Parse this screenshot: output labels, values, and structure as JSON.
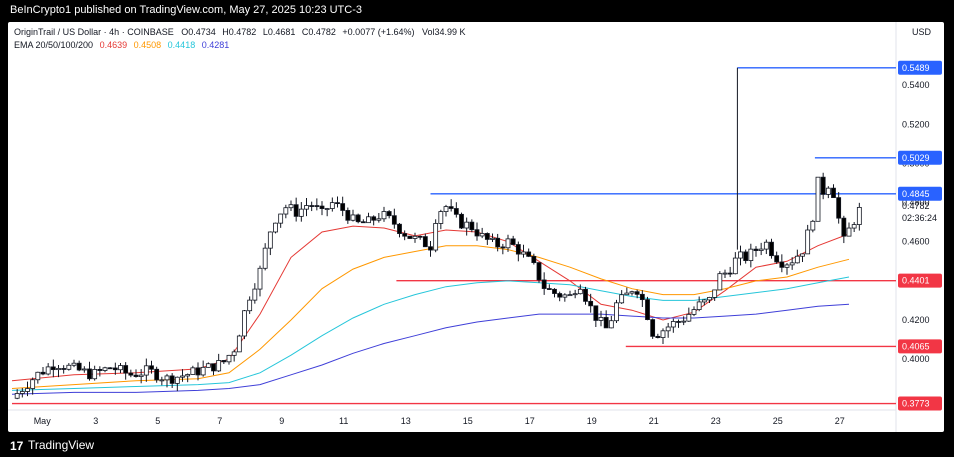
{
  "header": {
    "published": "BeInCrypto1 published on TradingView.com, May 27, 2025 10:23 UTC-3"
  },
  "legend": {
    "symbol": "OriginTrail / US Dollar · 4h · COINBASE",
    "open": "O0.4734",
    "high": "H0.4782",
    "low": "L0.4681",
    "close": "C0.4782",
    "change": "+0.0077 (+1.64%)",
    "volume": "Vol34.99 K",
    "ema_label": "EMA 20/50/100/200",
    "ema_values": [
      "0.4639",
      "0.4508",
      "0.4418",
      "0.4281"
    ],
    "ema_colors": [
      "#e53935",
      "#ff9800",
      "#26c6da",
      "#3f3fd8"
    ]
  },
  "axis": {
    "currency": "USD",
    "countdown": "02:36:24"
  },
  "footer": {
    "logo": "17",
    "brand": "TradingView"
  },
  "colors": {
    "up": "#ffffff",
    "down": "#000000",
    "resistance": "#2962ff",
    "support": "#f23645"
  },
  "chart_data": {
    "type": "candlestick",
    "x": [
      "May",
      "3",
      "5",
      "7",
      "9",
      "11",
      "13",
      "15",
      "17",
      "19",
      "21",
      "23",
      "25",
      "27"
    ],
    "yticks": [
      0.4,
      0.42,
      0.44,
      0.46,
      0.48,
      0.5,
      0.52,
      0.54
    ],
    "ylim": [
      0.374,
      0.558
    ],
    "levels": [
      {
        "value": 0.5489,
        "label": "0.5489",
        "kind": "resistance"
      },
      {
        "value": 0.5029,
        "label": "0.5029",
        "kind": "resistance"
      },
      {
        "value": 0.4845,
        "label": "0.4845",
        "kind": "resistance"
      },
      {
        "value": 0.4401,
        "label": "0.4401",
        "kind": "support"
      },
      {
        "value": 0.4065,
        "label": "0.4065",
        "kind": "support"
      },
      {
        "value": 0.3773,
        "label": "0.3773",
        "kind": "support"
      }
    ],
    "last_price": {
      "value": 0.4782,
      "label": "0.4782"
    },
    "price_path": [
      [
        0,
        0.38
      ],
      [
        0.8,
        0.392
      ],
      [
        1.4,
        0.398
      ],
      [
        2.0,
        0.395
      ],
      [
        2.6,
        0.392
      ],
      [
        3.2,
        0.396
      ],
      [
        3.8,
        0.392
      ],
      [
        4.4,
        0.394
      ],
      [
        5.0,
        0.39
      ],
      [
        5.6,
        0.392
      ],
      [
        6.2,
        0.395
      ],
      [
        6.8,
        0.398
      ],
      [
        7.2,
        0.406
      ],
      [
        7.6,
        0.43
      ],
      [
        8.0,
        0.445
      ],
      [
        8.4,
        0.47
      ],
      [
        8.8,
        0.478
      ],
      [
        9.2,
        0.475
      ],
      [
        9.6,
        0.48
      ],
      [
        10.0,
        0.474
      ],
      [
        10.3,
        0.48
      ],
      [
        10.7,
        0.476
      ],
      [
        11.1,
        0.469
      ],
      [
        11.5,
        0.47
      ],
      [
        11.9,
        0.474
      ],
      [
        12.3,
        0.47
      ],
      [
        12.6,
        0.465
      ],
      [
        12.9,
        0.462
      ],
      [
        13.2,
        0.46
      ],
      [
        13.5,
        0.458
      ],
      [
        13.7,
        0.475
      ],
      [
        14.0,
        0.478
      ],
      [
        14.4,
        0.47
      ],
      [
        14.8,
        0.468
      ],
      [
        15.2,
        0.462
      ],
      [
        15.6,
        0.458
      ],
      [
        16.0,
        0.46
      ],
      [
        16.4,
        0.455
      ],
      [
        16.8,
        0.448
      ],
      [
        17.2,
        0.436
      ],
      [
        17.6,
        0.433
      ],
      [
        18.0,
        0.432
      ],
      [
        18.3,
        0.44
      ],
      [
        18.6,
        0.428
      ],
      [
        18.9,
        0.42
      ],
      [
        19.2,
        0.415
      ],
      [
        19.5,
        0.428
      ],
      [
        19.8,
        0.432
      ],
      [
        20.1,
        0.438
      ],
      [
        20.4,
        0.428
      ],
      [
        20.7,
        0.412
      ],
      [
        21.0,
        0.415
      ],
      [
        21.3,
        0.418
      ],
      [
        21.6,
        0.42
      ],
      [
        21.9,
        0.424
      ],
      [
        22.2,
        0.428
      ],
      [
        22.5,
        0.43
      ],
      [
        22.8,
        0.442
      ],
      [
        23.1,
        0.445
      ],
      [
        23.4,
        0.452
      ],
      [
        23.7,
        0.452
      ],
      [
        24.0,
        0.456
      ],
      [
        24.3,
        0.46
      ],
      [
        24.6,
        0.453
      ],
      [
        24.9,
        0.449
      ],
      [
        25.2,
        0.451
      ],
      [
        25.5,
        0.456
      ],
      [
        25.8,
        0.47
      ],
      [
        26.0,
        0.49
      ],
      [
        26.2,
        0.485
      ],
      [
        26.4,
        0.492
      ],
      [
        26.6,
        0.478
      ],
      [
        26.8,
        0.459
      ],
      [
        27.0,
        0.466
      ],
      [
        27.2,
        0.472
      ],
      [
        27.4,
        0.478
      ]
    ],
    "ema_series": [
      {
        "name": "EMA 20",
        "color": "#e53935",
        "points": [
          [
            0,
            0.389
          ],
          [
            2,
            0.392
          ],
          [
            4,
            0.393
          ],
          [
            6,
            0.395
          ],
          [
            7,
            0.4
          ],
          [
            8,
            0.423
          ],
          [
            9,
            0.452
          ],
          [
            10,
            0.465
          ],
          [
            11,
            0.468
          ],
          [
            12,
            0.467
          ],
          [
            13,
            0.463
          ],
          [
            14,
            0.466
          ],
          [
            15,
            0.465
          ],
          [
            16,
            0.46
          ],
          [
            17,
            0.45
          ],
          [
            18,
            0.44
          ],
          [
            19,
            0.428
          ],
          [
            20,
            0.425
          ],
          [
            21,
            0.42
          ],
          [
            22,
            0.424
          ],
          [
            23,
            0.435
          ],
          [
            24,
            0.447
          ],
          [
            25,
            0.45
          ],
          [
            26,
            0.458
          ],
          [
            27,
            0.464
          ]
        ]
      },
      {
        "name": "EMA 50",
        "color": "#ff9800",
        "points": [
          [
            0,
            0.385
          ],
          [
            2,
            0.387
          ],
          [
            4,
            0.389
          ],
          [
            6,
            0.39
          ],
          [
            7,
            0.393
          ],
          [
            8,
            0.405
          ],
          [
            9,
            0.42
          ],
          [
            10,
            0.436
          ],
          [
            11,
            0.446
          ],
          [
            12,
            0.452
          ],
          [
            13,
            0.455
          ],
          [
            14,
            0.458
          ],
          [
            15,
            0.458
          ],
          [
            16,
            0.456
          ],
          [
            17,
            0.452
          ],
          [
            18,
            0.447
          ],
          [
            19,
            0.441
          ],
          [
            20,
            0.436
          ],
          [
            21,
            0.433
          ],
          [
            22,
            0.433
          ],
          [
            23,
            0.436
          ],
          [
            24,
            0.44
          ],
          [
            25,
            0.442
          ],
          [
            26,
            0.447
          ],
          [
            27,
            0.451
          ]
        ]
      },
      {
        "name": "EMA 100",
        "color": "#26c6da",
        "points": [
          [
            0,
            0.384
          ],
          [
            2,
            0.385
          ],
          [
            4,
            0.386
          ],
          [
            6,
            0.387
          ],
          [
            7,
            0.388
          ],
          [
            8,
            0.393
          ],
          [
            9,
            0.402
          ],
          [
            10,
            0.412
          ],
          [
            11,
            0.421
          ],
          [
            12,
            0.428
          ],
          [
            13,
            0.433
          ],
          [
            14,
            0.437
          ],
          [
            15,
            0.439
          ],
          [
            16,
            0.44
          ],
          [
            17,
            0.439
          ],
          [
            18,
            0.438
          ],
          [
            19,
            0.435
          ],
          [
            20,
            0.432
          ],
          [
            21,
            0.43
          ],
          [
            22,
            0.43
          ],
          [
            23,
            0.432
          ],
          [
            24,
            0.434
          ],
          [
            25,
            0.436
          ],
          [
            26,
            0.439
          ],
          [
            27,
            0.442
          ]
        ]
      },
      {
        "name": "EMA 200",
        "color": "#3f3fd8",
        "points": [
          [
            0,
            0.382
          ],
          [
            2,
            0.383
          ],
          [
            4,
            0.383
          ],
          [
            6,
            0.384
          ],
          [
            7,
            0.385
          ],
          [
            8,
            0.387
          ],
          [
            9,
            0.392
          ],
          [
            10,
            0.397
          ],
          [
            11,
            0.403
          ],
          [
            12,
            0.408
          ],
          [
            13,
            0.412
          ],
          [
            14,
            0.416
          ],
          [
            15,
            0.419
          ],
          [
            16,
            0.421
          ],
          [
            17,
            0.423
          ],
          [
            18,
            0.423
          ],
          [
            19,
            0.423
          ],
          [
            20,
            0.422
          ],
          [
            21,
            0.421
          ],
          [
            22,
            0.421
          ],
          [
            23,
            0.422
          ],
          [
            24,
            0.423
          ],
          [
            25,
            0.425
          ],
          [
            26,
            0.427
          ],
          [
            27,
            0.428
          ]
        ]
      }
    ]
  }
}
